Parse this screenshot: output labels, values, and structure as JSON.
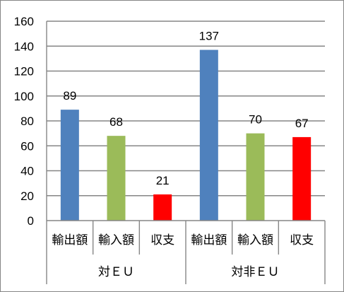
{
  "chart_data": {
    "type": "bar",
    "title": "",
    "xlabel": "",
    "ylabel": "",
    "ylim": [
      0,
      160
    ],
    "yticks": [
      0,
      20,
      40,
      60,
      80,
      100,
      120,
      140,
      160
    ],
    "grid": true,
    "legend": "none",
    "groups": [
      {
        "label": "対ＥＵ",
        "bars": [
          {
            "category": "輸出額",
            "value": 89,
            "color": "#4f81bd"
          },
          {
            "category": "輸入額",
            "value": 68,
            "color": "#9bbb59"
          },
          {
            "category": "収支",
            "value": 21,
            "color": "#ff0000"
          }
        ]
      },
      {
        "label": "対非ＥＵ",
        "bars": [
          {
            "category": "輸出額",
            "value": 137,
            "color": "#4f81bd"
          },
          {
            "category": "輸入額",
            "value": 70,
            "color": "#9bbb59"
          },
          {
            "category": "収支",
            "value": 67,
            "color": "#ff0000"
          }
        ]
      }
    ]
  }
}
